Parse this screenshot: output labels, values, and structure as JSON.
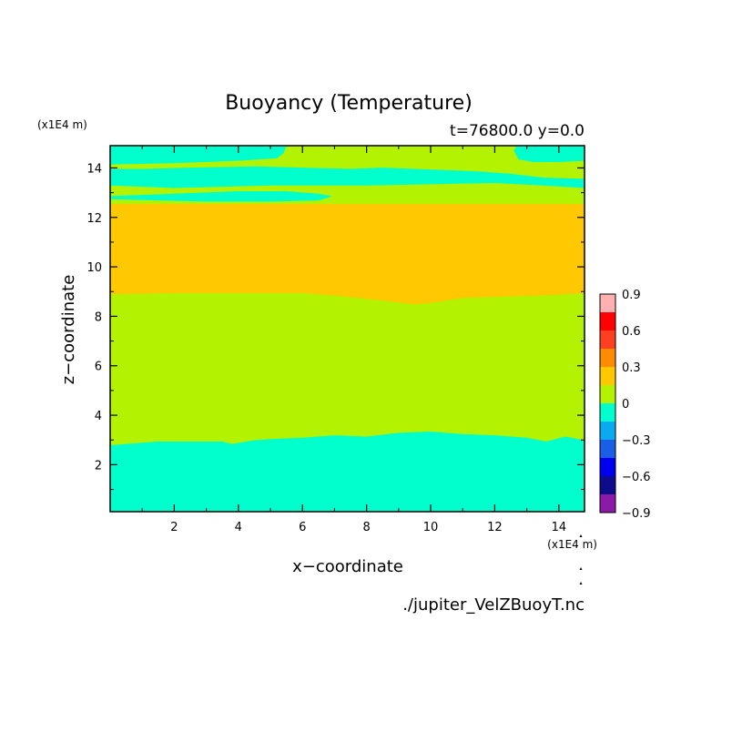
{
  "chart_data": {
    "type": "heatmap",
    "title": "Buoyancy (Temperature)",
    "subtitle": "t=76800.0 y=0.0",
    "xlabel": "x−coordinate",
    "ylabel": "z−coordinate",
    "x_unit": "(x1E4 m)",
    "y_unit": "(x1E4 m)",
    "xlim": [
      0,
      14.8
    ],
    "ylim": [
      0.1,
      14.9
    ],
    "x_ticks": [
      2,
      4,
      6,
      8,
      10,
      12,
      14
    ],
    "y_ticks": [
      2,
      4,
      6,
      8,
      10,
      12,
      14
    ],
    "x_tick_labels": [
      "2",
      "4",
      "6",
      "8",
      "10",
      "12",
      "14"
    ],
    "y_tick_labels": [
      "2",
      "4",
      "6",
      "8",
      "10",
      "12",
      "14"
    ],
    "source_file": "./jupiter_VelZBuoyT.nc",
    "colorbar": {
      "levels": [
        -0.9,
        -0.75,
        -0.6,
        -0.45,
        -0.3,
        -0.15,
        0,
        0.15,
        0.3,
        0.45,
        0.6,
        0.75,
        0.9
      ],
      "colors": [
        "#8c1aa8",
        "#0d0d8c",
        "#0000ee",
        "#1a5ee6",
        "#0aaaf0",
        "#00ffcc",
        "#b3f200",
        "#ffc800",
        "#ff8c00",
        "#ff4020",
        "#ff0000",
        "#ffb0b0"
      ],
      "tick_values": [
        0.9,
        0.6,
        0.3,
        0,
        -0.3,
        -0.6,
        -0.9
      ],
      "tick_labels": [
        "0.9",
        "0.6",
        "0.3",
        "0",
        "−0.3",
        "−0.6",
        "−0.9"
      ]
    },
    "regions": [
      {
        "range": [
          -0.15,
          0
        ],
        "color": "#00ffcc",
        "points": [
          [
            0,
            0.1
          ],
          [
            14.8,
            0.1
          ],
          [
            14.8,
            3.0
          ],
          [
            14.2,
            3.15
          ],
          [
            13.6,
            2.95
          ],
          [
            13.0,
            3.1
          ],
          [
            12.0,
            3.2
          ],
          [
            11.0,
            3.25
          ],
          [
            10.0,
            3.35
          ],
          [
            9.0,
            3.3
          ],
          [
            8.0,
            3.15
          ],
          [
            7.0,
            3.2
          ],
          [
            6.0,
            3.1
          ],
          [
            5.0,
            3.05
          ],
          [
            4.5,
            3.0
          ],
          [
            3.8,
            2.85
          ],
          [
            3.5,
            2.95
          ],
          [
            2.5,
            2.95
          ],
          [
            1.5,
            2.95
          ],
          [
            0.5,
            2.85
          ],
          [
            0,
            2.8
          ]
        ]
      },
      {
        "range": [
          0,
          0.15
        ],
        "color": "#b3f200",
        "points": [
          [
            0,
            2.8
          ],
          [
            0.5,
            2.85
          ],
          [
            1.5,
            2.95
          ],
          [
            2.5,
            2.95
          ],
          [
            3.5,
            2.95
          ],
          [
            3.8,
            2.85
          ],
          [
            4.5,
            3.0
          ],
          [
            5.0,
            3.05
          ],
          [
            6.0,
            3.1
          ],
          [
            7.0,
            3.2
          ],
          [
            8.0,
            3.15
          ],
          [
            9.0,
            3.3
          ],
          [
            10.0,
            3.35
          ],
          [
            11.0,
            3.25
          ],
          [
            12.0,
            3.2
          ],
          [
            13.0,
            3.1
          ],
          [
            13.6,
            2.95
          ],
          [
            14.2,
            3.15
          ],
          [
            14.8,
            3.0
          ],
          [
            14.8,
            8.95
          ],
          [
            13.5,
            8.85
          ],
          [
            12.0,
            8.8
          ],
          [
            11.0,
            8.75
          ],
          [
            10.0,
            8.55
          ],
          [
            9.5,
            8.5
          ],
          [
            8.5,
            8.65
          ],
          [
            7.0,
            8.85
          ],
          [
            6.0,
            8.95
          ],
          [
            4.0,
            8.95
          ],
          [
            2.0,
            8.95
          ],
          [
            0,
            8.9
          ]
        ]
      },
      {
        "range": [
          0.15,
          0.3
        ],
        "color": "#ffc800",
        "points": [
          [
            0,
            8.9
          ],
          [
            2.0,
            8.95
          ],
          [
            4.0,
            8.95
          ],
          [
            6.0,
            8.95
          ],
          [
            7.0,
            8.85
          ],
          [
            8.5,
            8.65
          ],
          [
            9.5,
            8.5
          ],
          [
            10.0,
            8.55
          ],
          [
            11.0,
            8.75
          ],
          [
            12.0,
            8.8
          ],
          [
            13.5,
            8.85
          ],
          [
            14.8,
            8.95
          ],
          [
            14.8,
            12.55
          ],
          [
            0,
            12.55
          ]
        ]
      },
      {
        "range": [
          0,
          0.15
        ],
        "color": "#b3f200",
        "points": [
          [
            0,
            12.55
          ],
          [
            14.8,
            12.55
          ],
          [
            14.8,
            14.9
          ],
          [
            0,
            14.9
          ]
        ]
      },
      {
        "range": [
          -0.15,
          0
        ],
        "color": "#00ffcc",
        "points": [
          [
            0,
            12.85
          ],
          [
            2.0,
            12.95
          ],
          [
            4.0,
            13.05
          ],
          [
            5.5,
            13.05
          ],
          [
            6.5,
            12.95
          ],
          [
            6.9,
            12.85
          ],
          [
            6.5,
            12.7
          ],
          [
            5.0,
            12.65
          ],
          [
            3.0,
            12.65
          ],
          [
            1.5,
            12.7
          ],
          [
            0,
            12.75
          ]
        ]
      },
      {
        "range": [
          -0.15,
          0
        ],
        "color": "#00ffcc",
        "points": [
          [
            0,
            13.3
          ],
          [
            2.0,
            13.2
          ],
          [
            3.5,
            13.25
          ],
          [
            5.0,
            13.3
          ],
          [
            6.5,
            13.3
          ],
          [
            8.0,
            13.3
          ],
          [
            10.0,
            13.35
          ],
          [
            12.0,
            13.4
          ],
          [
            13.5,
            13.3
          ],
          [
            14.8,
            13.2
          ],
          [
            14.8,
            13.55
          ],
          [
            13.5,
            13.6
          ],
          [
            12.5,
            13.75
          ],
          [
            11.5,
            13.85
          ],
          [
            9.5,
            13.95
          ],
          [
            8.5,
            14.0
          ],
          [
            7.5,
            13.95
          ],
          [
            6.0,
            14.0
          ],
          [
            4.5,
            14.05
          ],
          [
            2.5,
            14.0
          ],
          [
            1.0,
            13.95
          ],
          [
            0,
            13.95
          ]
        ]
      },
      {
        "range": [
          -0.15,
          0
        ],
        "color": "#00ffcc",
        "points": [
          [
            0,
            14.9
          ],
          [
            0,
            14.15
          ],
          [
            2.0,
            14.2
          ],
          [
            4.0,
            14.3
          ],
          [
            5.2,
            14.4
          ],
          [
            5.4,
            14.6
          ],
          [
            5.5,
            14.9
          ]
        ]
      },
      {
        "range": [
          -0.15,
          0
        ],
        "color": "#00ffcc",
        "points": [
          [
            12.7,
            14.9
          ],
          [
            12.6,
            14.7
          ],
          [
            12.75,
            14.35
          ],
          [
            13.2,
            14.25
          ],
          [
            14.0,
            14.25
          ],
          [
            14.8,
            14.3
          ],
          [
            14.8,
            14.9
          ]
        ]
      }
    ]
  }
}
